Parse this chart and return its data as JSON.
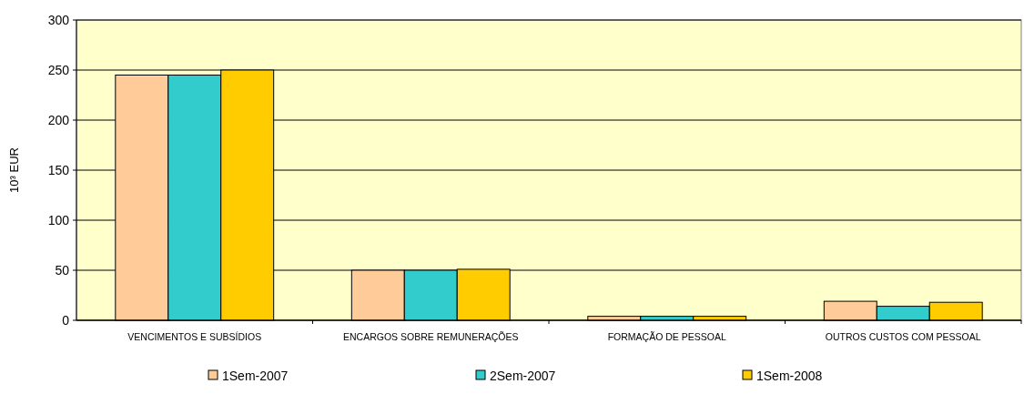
{
  "chart_data": {
    "type": "bar",
    "ylabel": "10³ EUR",
    "categories": [
      "VENCIMENTOS E SUBSÍDIOS",
      "ENCARGOS SOBRE REMUNERAÇÕES",
      "FORMAÇÃO DE PESSOAL",
      "OUTROS CUSTOS COM PESSOAL"
    ],
    "series": [
      {
        "name": "1Sem-2007",
        "color": "#ffcc99",
        "values": [
          245,
          50,
          4,
          19
        ]
      },
      {
        "name": "2Sem-2007",
        "color": "#33cccc",
        "values": [
          245,
          50,
          4,
          14
        ]
      },
      {
        "name": "1Sem-2008",
        "color": "#ffcc00",
        "values": [
          250,
          51,
          4,
          18
        ]
      }
    ],
    "ylim": [
      0,
      300
    ],
    "yticks": [
      0,
      50,
      100,
      150,
      200,
      250,
      300
    ],
    "grid": "y",
    "legend": "bottom"
  }
}
